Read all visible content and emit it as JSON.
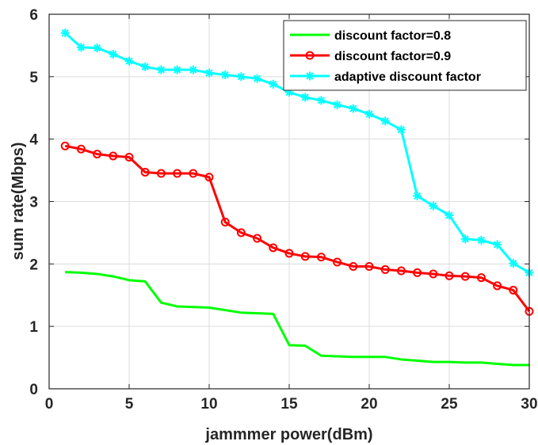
{
  "chart_data": {
    "type": "line",
    "xlabel": "jammmer power(dBm)",
    "ylabel": "sum rate(Mbps)",
    "xlim": [
      0,
      30
    ],
    "ylim": [
      0,
      6
    ],
    "xticks": [
      0,
      5,
      10,
      15,
      20,
      25,
      30
    ],
    "yticks": [
      0,
      1,
      2,
      3,
      4,
      5,
      6
    ],
    "grid": true,
    "legend_position": "top-right",
    "series": [
      {
        "name": "discount factor=0.8",
        "color": "#00ff00",
        "marker": "none",
        "x": [
          1,
          2,
          3,
          4,
          5,
          6,
          7,
          8,
          9,
          10,
          11,
          12,
          13,
          14,
          15,
          16,
          17,
          18,
          19,
          20,
          21,
          22,
          23,
          24,
          25,
          26,
          27,
          28,
          29,
          30
        ],
        "y": [
          1.87,
          1.86,
          1.84,
          1.8,
          1.74,
          1.72,
          1.38,
          1.32,
          1.31,
          1.3,
          1.26,
          1.22,
          1.21,
          1.2,
          0.7,
          0.69,
          0.53,
          0.52,
          0.51,
          0.51,
          0.51,
          0.47,
          0.45,
          0.43,
          0.43,
          0.42,
          0.42,
          0.4,
          0.38,
          0.38
        ]
      },
      {
        "name": "discount factor=0.9",
        "color": "#ff0000",
        "marker": "circle",
        "x": [
          1,
          2,
          3,
          4,
          5,
          6,
          7,
          8,
          9,
          10,
          11,
          12,
          13,
          14,
          15,
          16,
          17,
          18,
          19,
          20,
          21,
          22,
          23,
          24,
          25,
          26,
          27,
          28,
          29,
          30
        ],
        "y": [
          3.89,
          3.84,
          3.76,
          3.73,
          3.71,
          3.47,
          3.45,
          3.45,
          3.45,
          3.39,
          2.67,
          2.5,
          2.41,
          2.26,
          2.17,
          2.12,
          2.11,
          2.03,
          1.96,
          1.96,
          1.91,
          1.89,
          1.86,
          1.84,
          1.81,
          1.8,
          1.78,
          1.65,
          1.58,
          1.24
        ]
      },
      {
        "name": "adaptive discount factor",
        "color": "#00ffff",
        "marker": "asterisk",
        "x": [
          1,
          2,
          3,
          4,
          5,
          6,
          7,
          8,
          9,
          10,
          11,
          12,
          13,
          14,
          15,
          16,
          17,
          18,
          19,
          20,
          21,
          22,
          23,
          24,
          25,
          26,
          27,
          28,
          29,
          30
        ],
        "y": [
          5.7,
          5.47,
          5.46,
          5.36,
          5.25,
          5.16,
          5.11,
          5.11,
          5.11,
          5.06,
          5.03,
          5.0,
          4.97,
          4.88,
          4.75,
          4.67,
          4.62,
          4.55,
          4.49,
          4.4,
          4.29,
          4.15,
          3.09,
          2.93,
          2.78,
          2.4,
          2.38,
          2.31,
          2.01,
          1.86
        ]
      }
    ]
  }
}
